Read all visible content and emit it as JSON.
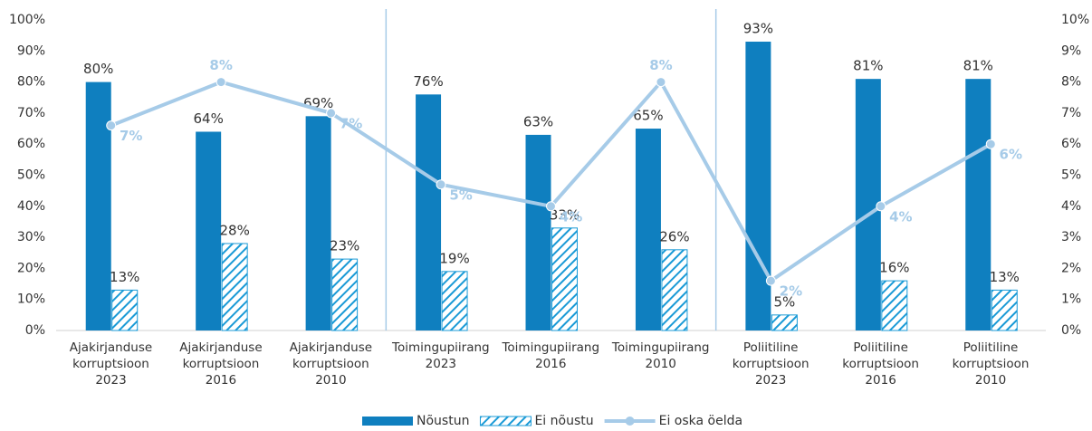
{
  "chart_data": {
    "type": "bar",
    "categories": [
      "Ajakirjanduse\nkorruptsioon\n2023",
      "Ajakirjanduse\nkorruptsioon\n2016",
      "Ajakirjanduse\nkorruptsioon\n2010",
      "Toimingupiirang\n2023",
      "Toimingupiirang\n2016",
      "Toimingupiirang\n2010",
      "Poliitiline\nkorruptsioon\n2023",
      "Poliitiline\nkorruptsioon\n2016",
      "Poliitiline\nkorruptsioon\n2010"
    ],
    "series": [
      {
        "name": "Nõustun",
        "type": "bar",
        "color": "#0f7fbf",
        "values": [
          80,
          64,
          69,
          76,
          63,
          65,
          93,
          81,
          81
        ],
        "value_labels": [
          "80%",
          "64%",
          "69%",
          "76%",
          "63%",
          "65%",
          "93%",
          "81%",
          "81%"
        ]
      },
      {
        "name": "Ei nõustu",
        "type": "bar",
        "pattern": "hatch",
        "color": "#1a9ad6",
        "values": [
          13,
          28,
          23,
          19,
          33,
          26,
          5,
          16,
          13
        ],
        "value_labels": [
          "13%",
          "28%",
          "23%",
          "19%",
          "33%",
          "26%",
          "5%",
          "16%",
          "13%"
        ]
      },
      {
        "name": "Ei oska öelda",
        "type": "line",
        "axis": "y2",
        "color": "#a6cbe8",
        "values": [
          6.6,
          8.0,
          7.0,
          4.7,
          4.0,
          8.0,
          1.6,
          4.0,
          6.0
        ],
        "value_labels": [
          "7%",
          "8%",
          "7%",
          "5%",
          "4%",
          "8%",
          "2%",
          "4%",
          "6%"
        ]
      }
    ],
    "ylim": [
      0,
      100
    ],
    "yticks": [
      {
        "value": 0,
        "label": "0%"
      },
      {
        "value": 10,
        "label": "10%"
      },
      {
        "value": 20,
        "label": "20%"
      },
      {
        "value": 30,
        "label": "30%"
      },
      {
        "value": 40,
        "label": "40%"
      },
      {
        "value": 50,
        "label": "50%"
      },
      {
        "value": 60,
        "label": "60%"
      },
      {
        "value": 70,
        "label": "70%"
      },
      {
        "value": 80,
        "label": "80%"
      },
      {
        "value": 90,
        "label": "90%"
      },
      {
        "value": 100,
        "label": "100%"
      }
    ],
    "y2lim": [
      0,
      10
    ],
    "y2ticks": [
      {
        "value": 0,
        "label": "0%"
      },
      {
        "value": 1,
        "label": "1%"
      },
      {
        "value": 2,
        "label": "2%"
      },
      {
        "value": 3,
        "label": "3%"
      },
      {
        "value": 4,
        "label": "4%"
      },
      {
        "value": 5,
        "label": "5%"
      },
      {
        "value": 6,
        "label": "6%"
      },
      {
        "value": 7,
        "label": "7%"
      },
      {
        "value": 8,
        "label": "8%"
      },
      {
        "value": 9,
        "label": "9%"
      },
      {
        "value": 10,
        "label": "10%"
      }
    ],
    "grid": false,
    "legend": "bottom"
  }
}
